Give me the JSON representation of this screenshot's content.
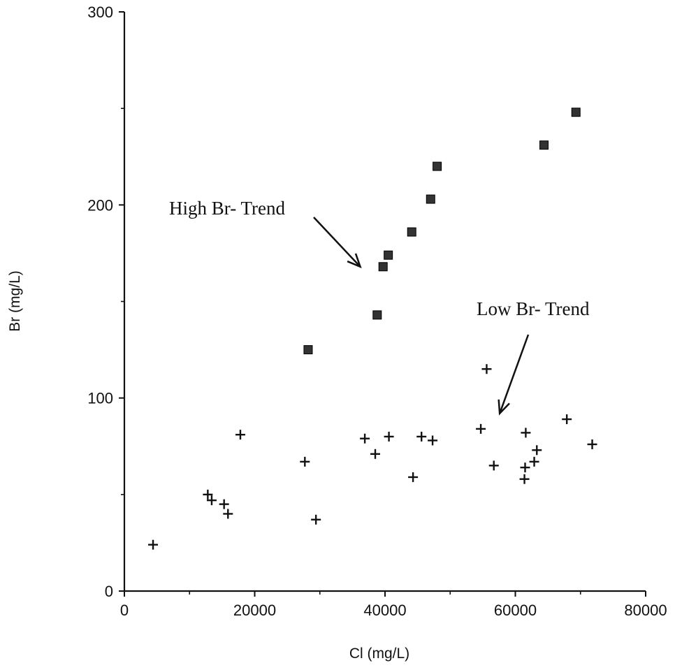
{
  "chart_data": {
    "type": "scatter",
    "xlabel": "Cl (mg/L)",
    "ylabel": "Br (mg/L)",
    "xlim": [
      0,
      80000
    ],
    "ylim": [
      0,
      300
    ],
    "xticks": [
      0,
      20000,
      40000,
      60000,
      80000
    ],
    "xtick_labels": [
      "0",
      "20000",
      "40000",
      "60000",
      "80000"
    ],
    "yticks": [
      0,
      100,
      200,
      300
    ],
    "ytick_labels": [
      "0",
      "100",
      "200",
      "300"
    ],
    "grid": false,
    "series": [
      {
        "marker": "filled-square",
        "color": "#333333",
        "points": [
          [
            28200,
            125
          ],
          [
            38800,
            143
          ],
          [
            39700,
            168
          ],
          [
            40500,
            174
          ],
          [
            44100,
            186
          ],
          [
            47000,
            203
          ],
          [
            48000,
            220
          ],
          [
            64400,
            231
          ],
          [
            69300,
            248
          ]
        ]
      },
      {
        "marker": "plus",
        "color": "#111111",
        "points": [
          [
            4400,
            24
          ],
          [
            12800,
            50
          ],
          [
            13400,
            47
          ],
          [
            15300,
            45
          ],
          [
            15900,
            40
          ],
          [
            17800,
            81
          ],
          [
            27700,
            67
          ],
          [
            29400,
            37
          ],
          [
            36900,
            79
          ],
          [
            38500,
            71
          ],
          [
            40600,
            80
          ],
          [
            44300,
            59
          ],
          [
            45600,
            80
          ],
          [
            47300,
            78
          ],
          [
            54700,
            84
          ],
          [
            55600,
            115
          ],
          [
            56700,
            65
          ],
          [
            61400,
            58
          ],
          [
            61500,
            64
          ],
          [
            61600,
            82
          ],
          [
            62900,
            67
          ],
          [
            63300,
            73
          ],
          [
            67900,
            89
          ],
          [
            71800,
            76
          ]
        ]
      }
    ],
    "annotations": [
      {
        "text": "High Br- Trend",
        "arrow_to": [
          36200,
          168
        ]
      },
      {
        "text": "Low Br- Trend",
        "arrow_to": [
          57600,
          92
        ]
      }
    ]
  }
}
